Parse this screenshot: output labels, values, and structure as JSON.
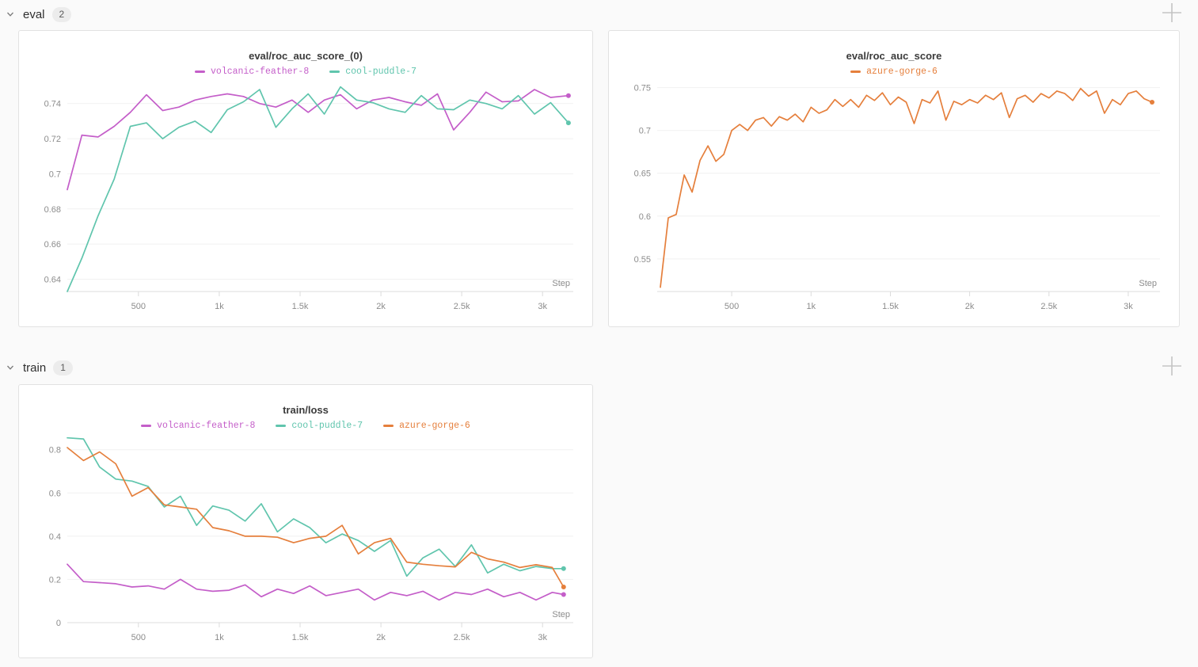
{
  "page": {
    "background": "#fafafa",
    "panel_border": "#e2e2e2"
  },
  "sections": [
    {
      "label": "eval",
      "count": "2"
    },
    {
      "label": "train",
      "count": "1"
    }
  ],
  "chart_data": [
    {
      "type": "line",
      "title": "eval/roc_auc_score_(0)",
      "xlabel": "Step",
      "legend_position": "top",
      "grid": true,
      "xlim": [
        60,
        3190
      ],
      "ylim": [
        0.633,
        0.7525
      ],
      "xtick_values": [
        500,
        1000,
        1500,
        2000,
        2500,
        3000
      ],
      "xtick_labels": [
        "500",
        "1k",
        "1.5k",
        "2k",
        "2.5k",
        "3k"
      ],
      "ytick_values": [
        0.64,
        0.66,
        0.68,
        0.7,
        0.72,
        0.74
      ],
      "ytick_labels": [
        "0.64",
        "0.66",
        "0.68",
        "0.7",
        "0.72",
        "0.74"
      ],
      "series": [
        {
          "name": "volcanic-feather-8",
          "color": "#c45ec9",
          "x": [
            60,
            150,
            250,
            350,
            450,
            550,
            650,
            750,
            850,
            950,
            1050,
            1150,
            1250,
            1350,
            1450,
            1550,
            1650,
            1750,
            1850,
            1950,
            2050,
            2150,
            2250,
            2350,
            2450,
            2550,
            2650,
            2750,
            2850,
            2950,
            3050,
            3160
          ],
          "values": [
            0.691,
            0.722,
            0.721,
            0.727,
            0.735,
            0.745,
            0.736,
            0.738,
            0.742,
            0.744,
            0.7455,
            0.744,
            0.74,
            0.738,
            0.742,
            0.735,
            0.742,
            0.745,
            0.737,
            0.742,
            0.7435,
            0.741,
            0.739,
            0.7455,
            0.725,
            0.735,
            0.7465,
            0.741,
            0.7415,
            0.748,
            0.7435,
            0.7445
          ]
        },
        {
          "name": "cool-puddle-7",
          "color": "#60c5ad",
          "x": [
            60,
            150,
            250,
            350,
            450,
            550,
            650,
            750,
            850,
            950,
            1050,
            1150,
            1250,
            1350,
            1450,
            1550,
            1650,
            1750,
            1850,
            1950,
            2050,
            2150,
            2250,
            2350,
            2450,
            2550,
            2650,
            2750,
            2850,
            2950,
            3050,
            3160
          ],
          "values": [
            0.633,
            0.652,
            0.676,
            0.697,
            0.727,
            0.729,
            0.72,
            0.7265,
            0.73,
            0.7235,
            0.7365,
            0.741,
            0.748,
            0.7265,
            0.737,
            0.7455,
            0.734,
            0.7495,
            0.742,
            0.7405,
            0.737,
            0.735,
            0.7445,
            0.737,
            0.7365,
            0.742,
            0.74,
            0.737,
            0.7445,
            0.734,
            0.7405,
            0.729
          ]
        }
      ]
    },
    {
      "type": "line",
      "title": "eval/roc_auc_score",
      "xlabel": "Step",
      "legend_position": "top",
      "grid": true,
      "xlim": [
        30,
        3200
      ],
      "ylim": [
        0.512,
        0.757
      ],
      "xtick_values": [
        500,
        1000,
        1500,
        2000,
        2500,
        3000
      ],
      "xtick_labels": [
        "500",
        "1k",
        "1.5k",
        "2k",
        "2.5k",
        "3k"
      ],
      "ytick_values": [
        0.55,
        0.6,
        0.65,
        0.7,
        0.75
      ],
      "ytick_labels": [
        "0.55",
        "0.6",
        "0.65",
        "0.7",
        "0.75"
      ],
      "series": [
        {
          "name": "azure-gorge-6",
          "color": "#e57f3c",
          "x": [
            50,
            100,
            150,
            200,
            250,
            300,
            350,
            400,
            450,
            500,
            550,
            600,
            650,
            700,
            750,
            800,
            850,
            900,
            950,
            1000,
            1050,
            1100,
            1150,
            1200,
            1250,
            1300,
            1350,
            1400,
            1450,
            1500,
            1550,
            1600,
            1650,
            1700,
            1750,
            1800,
            1850,
            1900,
            1950,
            2000,
            2050,
            2100,
            2150,
            2200,
            2250,
            2300,
            2350,
            2400,
            2450,
            2500,
            2550,
            2600,
            2650,
            2700,
            2750,
            2800,
            2850,
            2900,
            2950,
            3000,
            3050,
            3100,
            3150
          ],
          "values": [
            0.517,
            0.598,
            0.602,
            0.648,
            0.628,
            0.665,
            0.682,
            0.664,
            0.672,
            0.7,
            0.707,
            0.7,
            0.712,
            0.715,
            0.705,
            0.716,
            0.712,
            0.719,
            0.71,
            0.727,
            0.72,
            0.724,
            0.736,
            0.728,
            0.736,
            0.727,
            0.741,
            0.735,
            0.744,
            0.73,
            0.739,
            0.733,
            0.708,
            0.736,
            0.732,
            0.746,
            0.712,
            0.734,
            0.73,
            0.736,
            0.732,
            0.741,
            0.736,
            0.744,
            0.715,
            0.737,
            0.741,
            0.733,
            0.743,
            0.738,
            0.746,
            0.743,
            0.735,
            0.749,
            0.74,
            0.746,
            0.72,
            0.736,
            0.73,
            0.743,
            0.746,
            0.737,
            0.733
          ]
        }
      ]
    },
    {
      "type": "line",
      "title": "train/loss",
      "xlabel": "Step",
      "legend_position": "top",
      "grid": true,
      "xlim": [
        60,
        3190
      ],
      "ylim": [
        0,
        0.865
      ],
      "xtick_values": [
        500,
        1000,
        1500,
        2000,
        2500,
        3000
      ],
      "xtick_labels": [
        "500",
        "1k",
        "1.5k",
        "2k",
        "2.5k",
        "3k"
      ],
      "ytick_values": [
        0,
        0.2,
        0.4,
        0.6,
        0.8
      ],
      "ytick_labels": [
        "0",
        "0.2",
        "0.4",
        "0.6",
        "0.8"
      ],
      "series": [
        {
          "name": "volcanic-feather-8",
          "color": "#c45ec9",
          "x": [
            60,
            160,
            260,
            360,
            460,
            560,
            660,
            760,
            860,
            960,
            1060,
            1160,
            1260,
            1360,
            1460,
            1560,
            1660,
            1760,
            1860,
            1960,
            2060,
            2160,
            2260,
            2360,
            2460,
            2560,
            2660,
            2760,
            2860,
            2960,
            3060,
            3130
          ],
          "values": [
            0.27,
            0.19,
            0.185,
            0.18,
            0.165,
            0.17,
            0.155,
            0.2,
            0.155,
            0.145,
            0.15,
            0.175,
            0.12,
            0.155,
            0.135,
            0.17,
            0.125,
            0.14,
            0.155,
            0.105,
            0.14,
            0.125,
            0.145,
            0.105,
            0.14,
            0.13,
            0.155,
            0.12,
            0.14,
            0.105,
            0.14,
            0.13
          ]
        },
        {
          "name": "cool-puddle-7",
          "color": "#60c5ad",
          "x": [
            60,
            160,
            260,
            360,
            460,
            560,
            660,
            760,
            860,
            960,
            1060,
            1160,
            1260,
            1360,
            1460,
            1560,
            1660,
            1760,
            1860,
            1960,
            2060,
            2160,
            2260,
            2360,
            2460,
            2560,
            2660,
            2760,
            2860,
            2960,
            3060,
            3130
          ],
          "values": [
            0.855,
            0.85,
            0.72,
            0.664,
            0.655,
            0.63,
            0.535,
            0.585,
            0.45,
            0.54,
            0.52,
            0.47,
            0.55,
            0.42,
            0.48,
            0.44,
            0.37,
            0.41,
            0.38,
            0.33,
            0.38,
            0.215,
            0.3,
            0.34,
            0.26,
            0.36,
            0.23,
            0.27,
            0.24,
            0.26,
            0.25,
            0.25
          ]
        },
        {
          "name": "azure-gorge-6",
          "color": "#e57f3c",
          "x": [
            60,
            160,
            260,
            360,
            460,
            560,
            660,
            760,
            860,
            960,
            1060,
            1160,
            1260,
            1360,
            1460,
            1560,
            1660,
            1760,
            1860,
            1960,
            2060,
            2160,
            2260,
            2360,
            2460,
            2560,
            2660,
            2760,
            2860,
            2960,
            3060,
            3130
          ],
          "values": [
            0.81,
            0.75,
            0.79,
            0.735,
            0.585,
            0.625,
            0.545,
            0.535,
            0.525,
            0.44,
            0.425,
            0.4,
            0.4,
            0.395,
            0.37,
            0.39,
            0.4,
            0.45,
            0.318,
            0.37,
            0.39,
            0.28,
            0.27,
            0.263,
            0.258,
            0.325,
            0.295,
            0.28,
            0.255,
            0.268,
            0.255,
            0.165
          ]
        }
      ]
    }
  ]
}
